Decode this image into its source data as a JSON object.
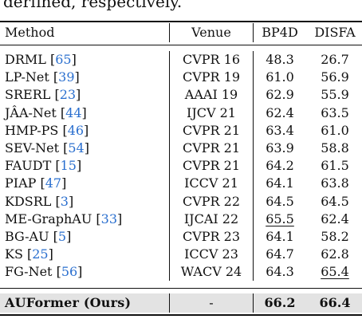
{
  "caption_tail": "derfined, respectively.",
  "table": {
    "headers": [
      "Method",
      "Venue",
      "BP4D",
      "DISFA"
    ],
    "rows": [
      {
        "method": "DRML",
        "ref": "65",
        "venue": "CVPR 16",
        "bp4d": "48.3",
        "disfa": "26.7"
      },
      {
        "method": "LP-Net",
        "ref": "39",
        "venue": "CVPR 19",
        "bp4d": "61.0",
        "disfa": "56.9"
      },
      {
        "method": "SRERL",
        "ref": "23",
        "venue": "AAAI 19",
        "bp4d": "62.9",
        "disfa": "55.9"
      },
      {
        "method": "JÂA-Net",
        "ref": "44",
        "venue": "IJCV 21",
        "bp4d": "62.4",
        "disfa": "63.5"
      },
      {
        "method": "HMP-PS",
        "ref": "46",
        "venue": "CVPR 21",
        "bp4d": "63.4",
        "disfa": "61.0"
      },
      {
        "method": "SEV-Net",
        "ref": "54",
        "venue": "CVPR 21",
        "bp4d": "63.9",
        "disfa": "58.8"
      },
      {
        "method": "FAUDT",
        "ref": "15",
        "venue": "CVPR 21",
        "bp4d": "64.2",
        "disfa": "61.5"
      },
      {
        "method": "PIAP",
        "ref": "47",
        "venue": "ICCV 21",
        "bp4d": "64.1",
        "disfa": "63.8"
      },
      {
        "method": "KDSRL",
        "ref": "3",
        "venue": "CVPR 22",
        "bp4d": "64.5",
        "disfa": "64.5"
      },
      {
        "method": "ME-GraphAU",
        "ref": "33",
        "venue": "IJCAI 22",
        "bp4d": "65.5",
        "disfa": "62.4"
      },
      {
        "method": "BG-AU",
        "ref": "5",
        "venue": "CVPR 23",
        "bp4d": "64.1",
        "disfa": "58.2"
      },
      {
        "method": "KS",
        "ref": "25",
        "venue": "ICCV 23",
        "bp4d": "64.7",
        "disfa": "62.8"
      },
      {
        "method": "FG-Net",
        "ref": "56",
        "venue": "WACV 24",
        "bp4d": "64.3",
        "disfa": "65.4"
      }
    ],
    "ours": {
      "method": "AUFormer (Ours)",
      "venue": "-",
      "bp4d": "66.2",
      "disfa": "66.4"
    }
  },
  "colors": {
    "citation": "#2a6fcf",
    "highlight_band": "#e3e3e3",
    "text": "#111111"
  }
}
